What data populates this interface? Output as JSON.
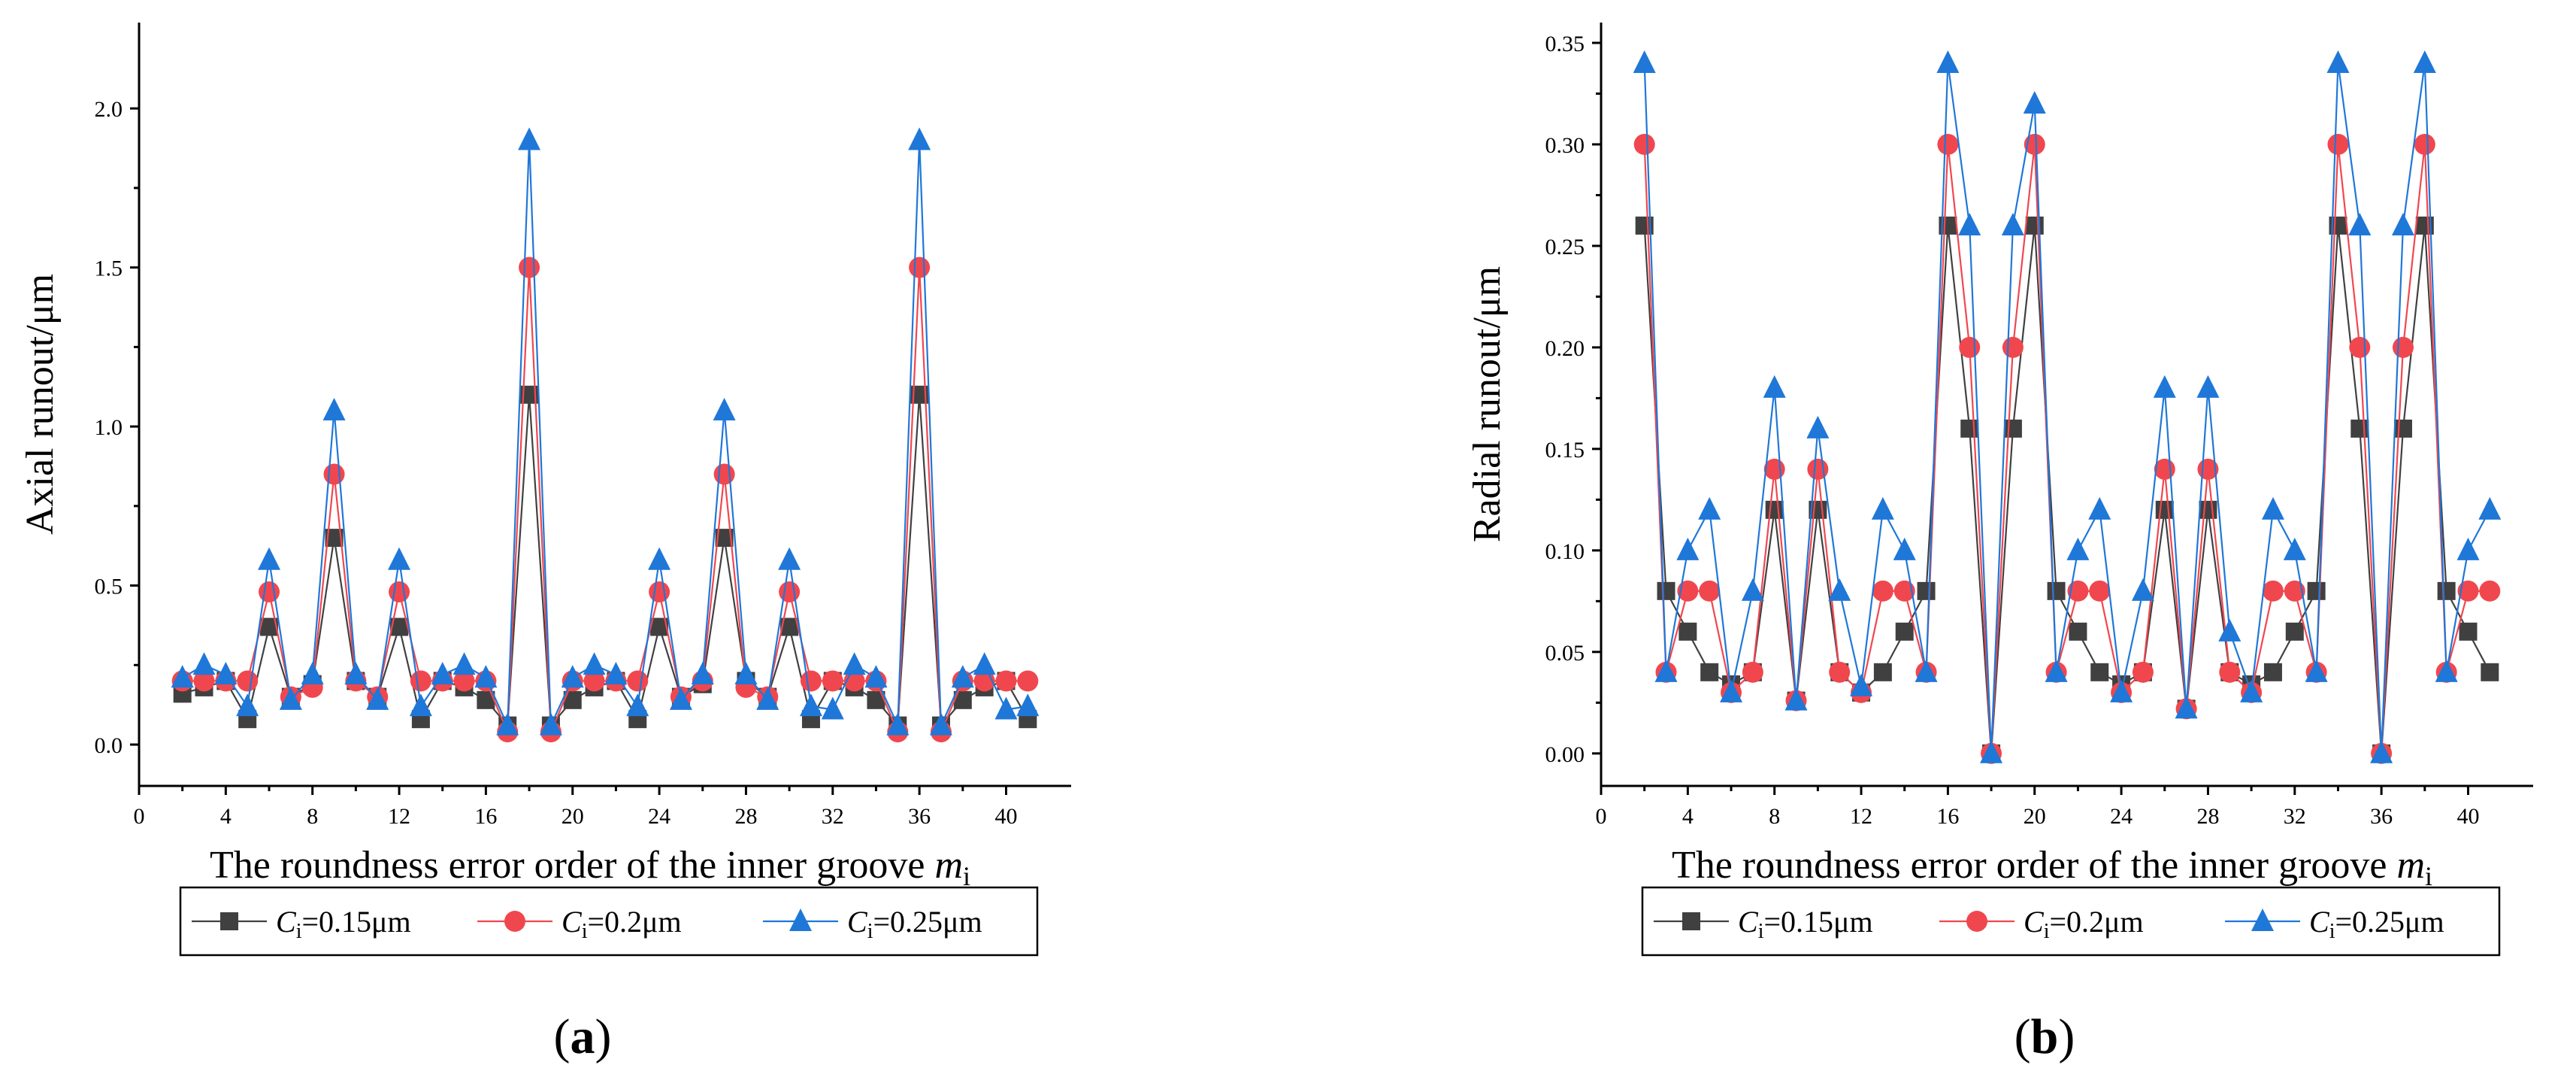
{
  "figure": {
    "x_label_main": "The roundness error order of the inner groove ",
    "x_label_var": "m",
    "x_label_sub": "i",
    "legend_var": "C",
    "legend_sub": "i",
    "legend_values": [
      "=0.15μm",
      "=0.2μm",
      "=0.25μm"
    ]
  },
  "chart_data": [
    {
      "type": "line",
      "panel_label": "a",
      "ylabel": "Axial runout/μm",
      "xlim": [
        0,
        43
      ],
      "ylim": [
        -0.13,
        2.27
      ],
      "xticks": [
        0,
        4,
        8,
        12,
        16,
        20,
        24,
        28,
        32,
        36,
        40
      ],
      "yticks": [
        0.0,
        0.5,
        1.0,
        1.5,
        2.0
      ],
      "ytick_labels": [
        "0.0",
        "0.5",
        "1.0",
        "1.5",
        "2.0"
      ],
      "x": [
        2,
        3,
        4,
        5,
        6,
        7,
        8,
        9,
        10,
        11,
        12,
        13,
        14,
        15,
        16,
        17,
        18,
        19,
        20,
        21,
        22,
        23,
        24,
        25,
        26,
        27,
        28,
        29,
        30,
        31,
        32,
        33,
        34,
        35,
        36,
        37,
        38,
        39,
        40,
        41
      ],
      "series": [
        {
          "name": "Ci=0.15μm",
          "color": "#404040",
          "marker": "square",
          "values": [
            0.16,
            0.18,
            0.2,
            0.08,
            0.37,
            0.15,
            0.19,
            0.65,
            0.2,
            0.15,
            0.37,
            0.08,
            0.2,
            0.18,
            0.14,
            0.06,
            1.1,
            0.06,
            0.14,
            0.18,
            0.2,
            0.08,
            0.37,
            0.15,
            0.19,
            0.65,
            0.2,
            0.15,
            0.37,
            0.08,
            0.2,
            0.18,
            0.14,
            0.06,
            1.1,
            0.06,
            0.14,
            0.18,
            0.2,
            0.08
          ]
        },
        {
          "name": "Ci=0.2μm",
          "color": "#f0474f",
          "marker": "circle",
          "values": [
            0.2,
            0.2,
            0.2,
            0.2,
            0.48,
            0.15,
            0.18,
            0.85,
            0.2,
            0.15,
            0.48,
            0.2,
            0.2,
            0.2,
            0.2,
            0.04,
            1.5,
            0.04,
            0.2,
            0.2,
            0.2,
            0.2,
            0.48,
            0.15,
            0.2,
            0.85,
            0.18,
            0.15,
            0.48,
            0.2,
            0.2,
            0.2,
            0.2,
            0.04,
            1.5,
            0.04,
            0.2,
            0.2,
            0.2,
            0.2
          ]
        },
        {
          "name": "Ci=0.25μm",
          "color": "#1f77d8",
          "marker": "triangle",
          "values": [
            0.21,
            0.25,
            0.22,
            0.12,
            0.58,
            0.14,
            0.22,
            1.05,
            0.22,
            0.14,
            0.58,
            0.12,
            0.22,
            0.25,
            0.21,
            0.06,
            1.9,
            0.06,
            0.21,
            0.25,
            0.22,
            0.12,
            0.58,
            0.14,
            0.22,
            1.05,
            0.22,
            0.14,
            0.58,
            0.12,
            0.11,
            0.25,
            0.21,
            0.06,
            1.9,
            0.06,
            0.21,
            0.25,
            0.11,
            0.12
          ]
        }
      ]
    },
    {
      "type": "line",
      "panel_label": "b",
      "ylabel": "Radial runout/μm",
      "xlim": [
        0,
        43
      ],
      "ylim": [
        -0.016,
        0.36
      ],
      "xticks": [
        0,
        4,
        8,
        12,
        16,
        20,
        24,
        28,
        32,
        36,
        40
      ],
      "yticks": [
        0.0,
        0.05,
        0.1,
        0.15,
        0.2,
        0.25,
        0.3,
        0.35
      ],
      "ytick_labels": [
        "0.00",
        "0.05",
        "0.10",
        "0.15",
        "0.20",
        "0.25",
        "0.30",
        "0.35"
      ],
      "x": [
        2,
        3,
        4,
        5,
        6,
        7,
        8,
        9,
        10,
        11,
        12,
        13,
        14,
        15,
        16,
        17,
        18,
        19,
        20,
        21,
        22,
        23,
        24,
        25,
        26,
        27,
        28,
        29,
        30,
        31,
        32,
        33,
        34,
        35,
        36,
        37,
        38,
        39,
        40,
        41
      ],
      "series": [
        {
          "name": "Ci=0.15μm",
          "color": "#404040",
          "marker": "square",
          "values": [
            0.26,
            0.08,
            0.06,
            0.04,
            0.034,
            0.04,
            0.12,
            0.026,
            0.12,
            0.04,
            0.03,
            0.04,
            0.06,
            0.08,
            0.26,
            0.16,
            0.0,
            0.16,
            0.26,
            0.08,
            0.06,
            0.04,
            0.034,
            0.04,
            0.12,
            0.022,
            0.12,
            0.04,
            0.034,
            0.04,
            0.06,
            0.08,
            0.26,
            0.16,
            0.0,
            0.16,
            0.26,
            0.08,
            0.06,
            0.04
          ]
        },
        {
          "name": "Ci=0.2μm",
          "color": "#f0474f",
          "marker": "circle",
          "values": [
            0.3,
            0.04,
            0.08,
            0.08,
            0.03,
            0.04,
            0.14,
            0.026,
            0.14,
            0.04,
            0.03,
            0.08,
            0.08,
            0.04,
            0.3,
            0.2,
            0.0,
            0.2,
            0.3,
            0.04,
            0.08,
            0.08,
            0.03,
            0.04,
            0.14,
            0.022,
            0.14,
            0.04,
            0.03,
            0.08,
            0.08,
            0.04,
            0.3,
            0.2,
            0.0,
            0.2,
            0.3,
            0.04,
            0.08,
            0.08
          ]
        },
        {
          "name": "Ci=0.25μm",
          "color": "#1f77d8",
          "marker": "triangle",
          "values": [
            0.34,
            0.04,
            0.1,
            0.12,
            0.03,
            0.08,
            0.18,
            0.026,
            0.16,
            0.08,
            0.033,
            0.12,
            0.1,
            0.04,
            0.34,
            0.26,
            0.0,
            0.26,
            0.32,
            0.04,
            0.1,
            0.12,
            0.03,
            0.08,
            0.18,
            0.022,
            0.18,
            0.06,
            0.03,
            0.12,
            0.1,
            0.04,
            0.34,
            0.26,
            0.0,
            0.26,
            0.34,
            0.04,
            0.1,
            0.12
          ]
        }
      ]
    }
  ]
}
